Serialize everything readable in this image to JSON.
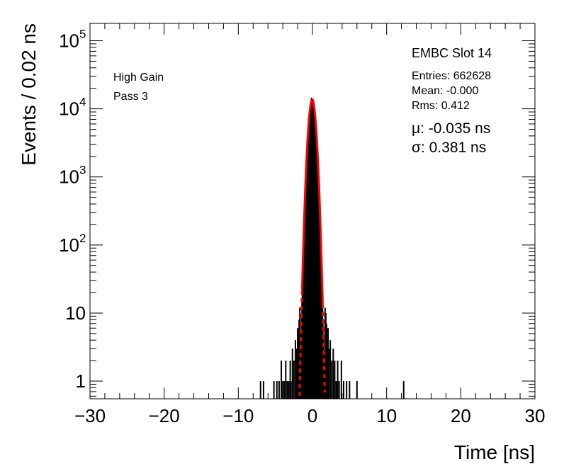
{
  "chart_data": {
    "type": "histogram",
    "title": "",
    "xlabel": "Time [ns]",
    "ylabel": "Events / 0.02 ns",
    "xlim": [
      -30,
      30
    ],
    "ylim": [
      0.55,
      180000
    ],
    "yscale": "log",
    "grid": false,
    "x_ticks": [
      -30,
      -20,
      -10,
      0,
      10,
      20,
      30
    ],
    "x_tick_labels": [
      "−30",
      "−20",
      "−10",
      "0",
      "10",
      "20",
      "30"
    ],
    "y_ticks": [
      1,
      10,
      100,
      1000,
      10000,
      100000
    ],
    "y_tick_labels": [
      {
        "base": "1",
        "exp": ""
      },
      {
        "base": "10",
        "exp": ""
      },
      {
        "base": "10",
        "exp": "2"
      },
      {
        "base": "10",
        "exp": "3"
      },
      {
        "base": "10",
        "exp": "4"
      },
      {
        "base": "10",
        "exp": "5"
      }
    ],
    "annotations_left": [
      "High Gain",
      "Pass 3"
    ],
    "stats": {
      "title": "EMBC Slot 14",
      "lines": [
        "Entries: 662628",
        "Mean: -0.000",
        "Rms: 0.412"
      ]
    },
    "fit": {
      "mu_label": "μ: -0.035 ns",
      "sigma_label": "σ: 0.381 ns",
      "mu": -0.035,
      "sigma": 0.381,
      "peak": 13500,
      "fit_range": [
        -1.4,
        1.4
      ],
      "color": "#ff0000"
    },
    "histogram_color": "#000000",
    "sparse_bins": [
      {
        "x": -7.0,
        "y": 1
      },
      {
        "x": -6.6,
        "y": 1
      },
      {
        "x": -5.2,
        "y": 1
      },
      {
        "x": -4.8,
        "y": 1
      },
      {
        "x": -4.5,
        "y": 1
      },
      {
        "x": -4.2,
        "y": 2
      },
      {
        "x": -4.0,
        "y": 1
      },
      {
        "x": -3.8,
        "y": 1
      },
      {
        "x": -3.6,
        "y": 2
      },
      {
        "x": -3.4,
        "y": 1
      },
      {
        "x": -3.2,
        "y": 1
      },
      {
        "x": -3.0,
        "y": 2
      },
      {
        "x": -2.9,
        "y": 1
      },
      {
        "x": -2.7,
        "y": 3
      },
      {
        "x": -2.5,
        "y": 2
      },
      {
        "x": -2.3,
        "y": 4
      },
      {
        "x": -2.1,
        "y": 3
      },
      {
        "x": -2.0,
        "y": 6
      },
      {
        "x": -1.9,
        "y": 5
      },
      {
        "x": -1.8,
        "y": 8
      },
      {
        "x": -1.7,
        "y": 12
      },
      {
        "x": 1.7,
        "y": 12
      },
      {
        "x": 1.8,
        "y": 10
      },
      {
        "x": 1.9,
        "y": 7
      },
      {
        "x": 2.0,
        "y": 5
      },
      {
        "x": 2.1,
        "y": 6
      },
      {
        "x": 2.2,
        "y": 3
      },
      {
        "x": 2.4,
        "y": 4
      },
      {
        "x": 2.6,
        "y": 2
      },
      {
        "x": 2.8,
        "y": 3
      },
      {
        "x": 3.0,
        "y": 2
      },
      {
        "x": 3.2,
        "y": 1
      },
      {
        "x": 3.4,
        "y": 2
      },
      {
        "x": 3.6,
        "y": 1
      },
      {
        "x": 3.9,
        "y": 2
      },
      {
        "x": 4.2,
        "y": 1
      },
      {
        "x": 4.6,
        "y": 1
      },
      {
        "x": 5.0,
        "y": 1
      },
      {
        "x": 6.0,
        "y": 1
      },
      {
        "x": 12.3,
        "y": 1
      }
    ]
  }
}
